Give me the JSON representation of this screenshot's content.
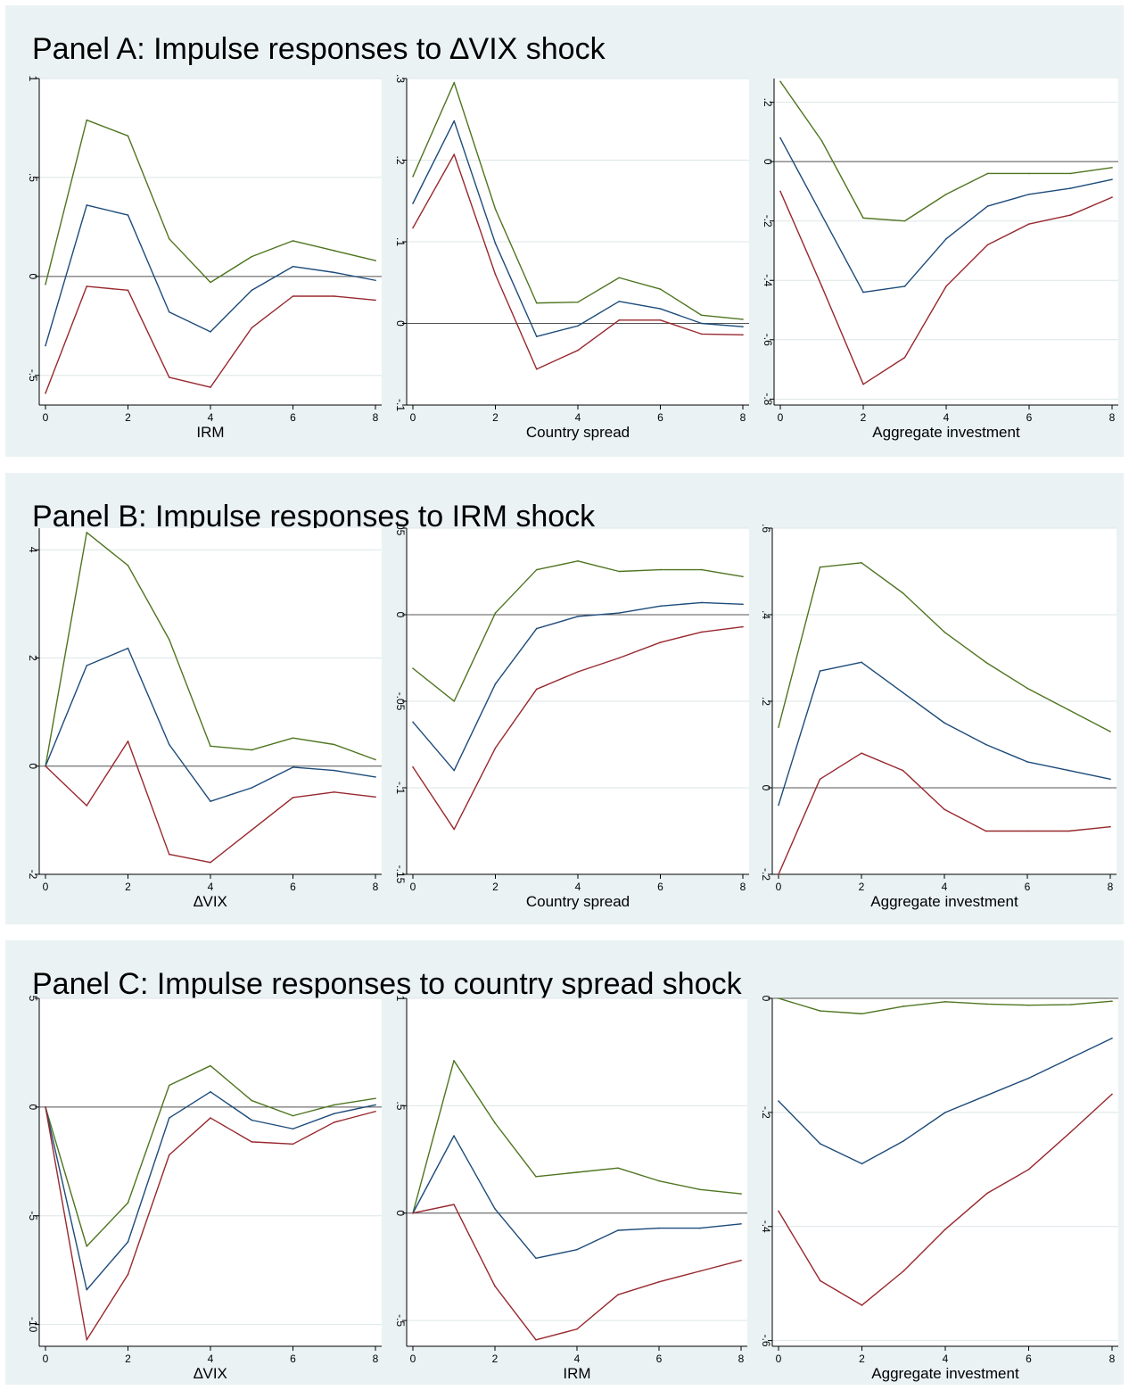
{
  "colors": {
    "upper": "#4f7520",
    "irf": "#1d4b7a",
    "lower": "#98282e",
    "zero": "#555555",
    "grid": "#dde6e7",
    "panel_bg": "#eaf2f3",
    "plot_bg": "#ffffff"
  },
  "panels": [
    {
      "title": "Panel A: Impulse responses to ∆VIX shock"
    },
    {
      "title": "Panel B: Impulse responses to IRM shock"
    },
    {
      "title": "Panel C: Impulse responses to country spread shock"
    }
  ],
  "chart_data": [
    {
      "panel": 0,
      "type": "line",
      "xlabel": "IRM",
      "x": [
        0,
        1,
        2,
        3,
        4,
        5,
        6,
        7,
        8
      ],
      "xticks": [
        0,
        2,
        4,
        6,
        8
      ],
      "xticklabels": [
        "0",
        "2",
        "4",
        "6",
        "8"
      ],
      "ylim": [
        -0.65,
        1.0
      ],
      "yticks": [
        -0.5,
        0,
        0.5,
        1
      ],
      "yticklabels": [
        "-.5",
        "0",
        ".5",
        "1"
      ],
      "series": [
        {
          "role": "upper",
          "values": [
            -0.04,
            0.79,
            0.71,
            0.19,
            -0.03,
            0.1,
            0.18,
            0.13,
            0.08
          ]
        },
        {
          "role": "irf",
          "values": [
            -0.35,
            0.36,
            0.31,
            -0.18,
            -0.28,
            -0.07,
            0.05,
            0.02,
            -0.02
          ]
        },
        {
          "role": "lower",
          "values": [
            -0.59,
            -0.05,
            -0.07,
            -0.51,
            -0.56,
            -0.26,
            -0.1,
            -0.1,
            -0.12
          ]
        }
      ]
    },
    {
      "panel": 0,
      "type": "line",
      "xlabel": "Country spread",
      "x": [
        0,
        1,
        2,
        3,
        4,
        5,
        6,
        7,
        8
      ],
      "xticks": [
        0,
        2,
        4,
        6,
        8
      ],
      "xticklabels": [
        "0",
        "2",
        "4",
        "6",
        "8"
      ],
      "ylim": [
        -0.1,
        0.3
      ],
      "yticks": [
        -0.1,
        0,
        0.1,
        0.2,
        0.3
      ],
      "yticklabels": [
        "-.1",
        "0",
        ".1",
        ".2",
        ".3"
      ],
      "series": [
        {
          "role": "upper",
          "values": [
            0.18,
            0.295,
            0.14,
            0.025,
            0.026,
            0.056,
            0.042,
            0.01,
            0.005
          ]
        },
        {
          "role": "irf",
          "values": [
            0.147,
            0.248,
            0.098,
            -0.016,
            -0.003,
            0.027,
            0.018,
            0.0,
            -0.004
          ]
        },
        {
          "role": "lower",
          "values": [
            0.117,
            0.207,
            0.06,
            -0.056,
            -0.033,
            0.004,
            0.004,
            -0.013,
            -0.014
          ]
        }
      ]
    },
    {
      "panel": 0,
      "type": "line",
      "xlabel": "Aggregate investment",
      "x": [
        0,
        1,
        2,
        3,
        4,
        5,
        6,
        7,
        8
      ],
      "xticks": [
        0,
        2,
        4,
        6,
        8
      ],
      "xticklabels": [
        "0",
        "2",
        "4",
        "6",
        "8"
      ],
      "ylim": [
        -0.82,
        0.28
      ],
      "yticks": [
        -0.8,
        -0.6,
        -0.4,
        -0.2,
        0,
        0.2
      ],
      "yticklabels": [
        "-.8",
        "-.6",
        "-.4",
        "-.2",
        "0",
        ".2"
      ],
      "series": [
        {
          "role": "upper",
          "values": [
            0.27,
            0.07,
            -0.19,
            -0.2,
            -0.11,
            -0.04,
            -0.04,
            -0.04,
            -0.02
          ]
        },
        {
          "role": "irf",
          "values": [
            0.08,
            -0.18,
            -0.44,
            -0.42,
            -0.26,
            -0.15,
            -0.11,
            -0.09,
            -0.06
          ]
        },
        {
          "role": "lower",
          "values": [
            -0.1,
            -0.42,
            -0.75,
            -0.66,
            -0.42,
            -0.28,
            -0.21,
            -0.18,
            -0.12
          ]
        }
      ]
    },
    {
      "panel": 1,
      "type": "line",
      "xlabel": "∆VIX",
      "x": [
        0,
        1,
        2,
        3,
        4,
        5,
        6,
        7,
        8
      ],
      "xticks": [
        0,
        2,
        4,
        6,
        8
      ],
      "xticklabels": [
        "0",
        "2",
        "4",
        "6",
        "8"
      ],
      "ylim": [
        -2.0,
        4.4
      ],
      "yticks": [
        -2,
        0,
        2,
        4
      ],
      "yticklabels": [
        "-2",
        "0",
        "2",
        "4"
      ],
      "series": [
        {
          "role": "upper",
          "values": [
            0.0,
            4.32,
            3.71,
            2.34,
            0.37,
            0.3,
            0.52,
            0.4,
            0.12
          ]
        },
        {
          "role": "irf",
          "values": [
            0.0,
            1.86,
            2.18,
            0.4,
            -0.65,
            -0.4,
            -0.02,
            -0.08,
            -0.2
          ]
        },
        {
          "role": "lower",
          "values": [
            0.0,
            -0.73,
            0.46,
            -1.63,
            -1.78,
            -1.18,
            -0.58,
            -0.48,
            -0.57
          ]
        }
      ]
    },
    {
      "panel": 1,
      "type": "line",
      "xlabel": "Country spread",
      "x": [
        0,
        1,
        2,
        3,
        4,
        5,
        6,
        7,
        8
      ],
      "xticks": [
        0,
        2,
        4,
        6,
        8
      ],
      "xticklabels": [
        "0",
        "2",
        "4",
        "6",
        "8"
      ],
      "ylim": [
        -0.15,
        0.05
      ],
      "yticks": [
        -0.15,
        -0.1,
        -0.05,
        0,
        0.05
      ],
      "yticklabels": [
        "-.15",
        "-.1",
        "-.05",
        "0",
        ".05"
      ],
      "series": [
        {
          "role": "upper",
          "values": [
            -0.031,
            -0.05,
            0.001,
            0.026,
            0.031,
            0.025,
            0.026,
            0.026,
            0.022
          ]
        },
        {
          "role": "irf",
          "values": [
            -0.062,
            -0.09,
            -0.04,
            -0.008,
            -0.001,
            0.001,
            0.005,
            0.007,
            0.006
          ]
        },
        {
          "role": "lower",
          "values": [
            -0.088,
            -0.124,
            -0.077,
            -0.043,
            -0.033,
            -0.025,
            -0.016,
            -0.01,
            -0.007
          ]
        }
      ]
    },
    {
      "panel": 1,
      "type": "line",
      "xlabel": "Aggregate investment",
      "x": [
        0,
        1,
        2,
        3,
        4,
        5,
        6,
        7,
        8
      ],
      "xticks": [
        0,
        2,
        4,
        6,
        8
      ],
      "xticklabels": [
        "0",
        "2",
        "4",
        "6",
        "8"
      ],
      "ylim": [
        -0.2,
        0.6
      ],
      "yticks": [
        -0.2,
        0,
        0.2,
        0.4,
        0.6
      ],
      "yticklabels": [
        "-.2",
        "0",
        ".2",
        ".4",
        ".6"
      ],
      "series": [
        {
          "role": "upper",
          "values": [
            0.14,
            0.51,
            0.52,
            0.45,
            0.36,
            0.29,
            0.23,
            0.18,
            0.13
          ]
        },
        {
          "role": "irf",
          "values": [
            -0.04,
            0.27,
            0.29,
            0.22,
            0.15,
            0.1,
            0.06,
            0.04,
            0.02
          ]
        },
        {
          "role": "lower",
          "values": [
            -0.2,
            0.02,
            0.08,
            0.04,
            -0.05,
            -0.1,
            -0.1,
            -0.1,
            -0.09
          ]
        }
      ]
    },
    {
      "panel": 2,
      "type": "line",
      "xlabel": "∆VIX",
      "x": [
        0,
        1,
        2,
        3,
        4,
        5,
        6,
        7,
        8
      ],
      "xticks": [
        0,
        2,
        4,
        6,
        8
      ],
      "xticklabels": [
        "0",
        "2",
        "4",
        "6",
        "8"
      ],
      "ylim": [
        -11.0,
        5.0
      ],
      "yticks": [
        -10,
        -5,
        0,
        5
      ],
      "yticklabels": [
        "-10",
        "-5",
        "0",
        "5"
      ],
      "series": [
        {
          "role": "upper",
          "values": [
            0.0,
            -6.4,
            -4.4,
            1.0,
            1.9,
            0.3,
            -0.4,
            0.1,
            0.4
          ]
        },
        {
          "role": "irf",
          "values": [
            0.0,
            -8.4,
            -6.2,
            -0.5,
            0.7,
            -0.6,
            -1.0,
            -0.3,
            0.1
          ]
        },
        {
          "role": "lower",
          "values": [
            0.0,
            -10.7,
            -7.7,
            -2.2,
            -0.5,
            -1.6,
            -1.7,
            -0.7,
            -0.2
          ]
        }
      ]
    },
    {
      "panel": 2,
      "type": "line",
      "xlabel": "IRM",
      "x": [
        0,
        1,
        2,
        3,
        4,
        5,
        6,
        7,
        8
      ],
      "xticks": [
        0,
        2,
        4,
        6,
        8
      ],
      "xticklabels": [
        "0",
        "2",
        "4",
        "6",
        "8"
      ],
      "ylim": [
        -0.62,
        1.0
      ],
      "yticks": [
        -0.5,
        0,
        0.5,
        1
      ],
      "yticklabels": [
        "-.5",
        "0",
        ".5",
        "1"
      ],
      "series": [
        {
          "role": "upper",
          "values": [
            0.0,
            0.71,
            0.42,
            0.17,
            0.19,
            0.21,
            0.15,
            0.11,
            0.09
          ]
        },
        {
          "role": "irf",
          "values": [
            0.0,
            0.36,
            0.02,
            -0.21,
            -0.17,
            -0.08,
            -0.07,
            -0.07,
            -0.05
          ]
        },
        {
          "role": "lower",
          "values": [
            0.0,
            0.04,
            -0.34,
            -0.59,
            -0.54,
            -0.38,
            -0.32,
            -0.27,
            -0.22
          ]
        }
      ]
    },
    {
      "panel": 2,
      "type": "line",
      "xlabel": "Aggregate investment",
      "x": [
        0,
        1,
        2,
        3,
        4,
        5,
        6,
        7,
        8
      ],
      "xticks": [
        0,
        2,
        4,
        6,
        8
      ],
      "xticklabels": [
        "0",
        "2",
        "4",
        "6",
        "8"
      ],
      "ylim": [
        -0.61,
        0.0
      ],
      "yticks": [
        -0.6,
        -0.4,
        -0.2,
        0
      ],
      "yticklabels": [
        "-.6",
        "-.4",
        "-.2",
        "0"
      ],
      "series": [
        {
          "role": "upper",
          "values": [
            0.0,
            -0.022,
            -0.027,
            -0.014,
            -0.006,
            -0.01,
            -0.012,
            -0.011,
            -0.005
          ]
        },
        {
          "role": "irf",
          "values": [
            -0.18,
            -0.255,
            -0.29,
            -0.25,
            -0.2,
            -0.17,
            -0.14,
            -0.105,
            -0.07
          ]
        },
        {
          "role": "lower",
          "values": [
            -0.373,
            -0.495,
            -0.538,
            -0.478,
            -0.405,
            -0.342,
            -0.3,
            -0.235,
            -0.168
          ]
        }
      ]
    }
  ]
}
